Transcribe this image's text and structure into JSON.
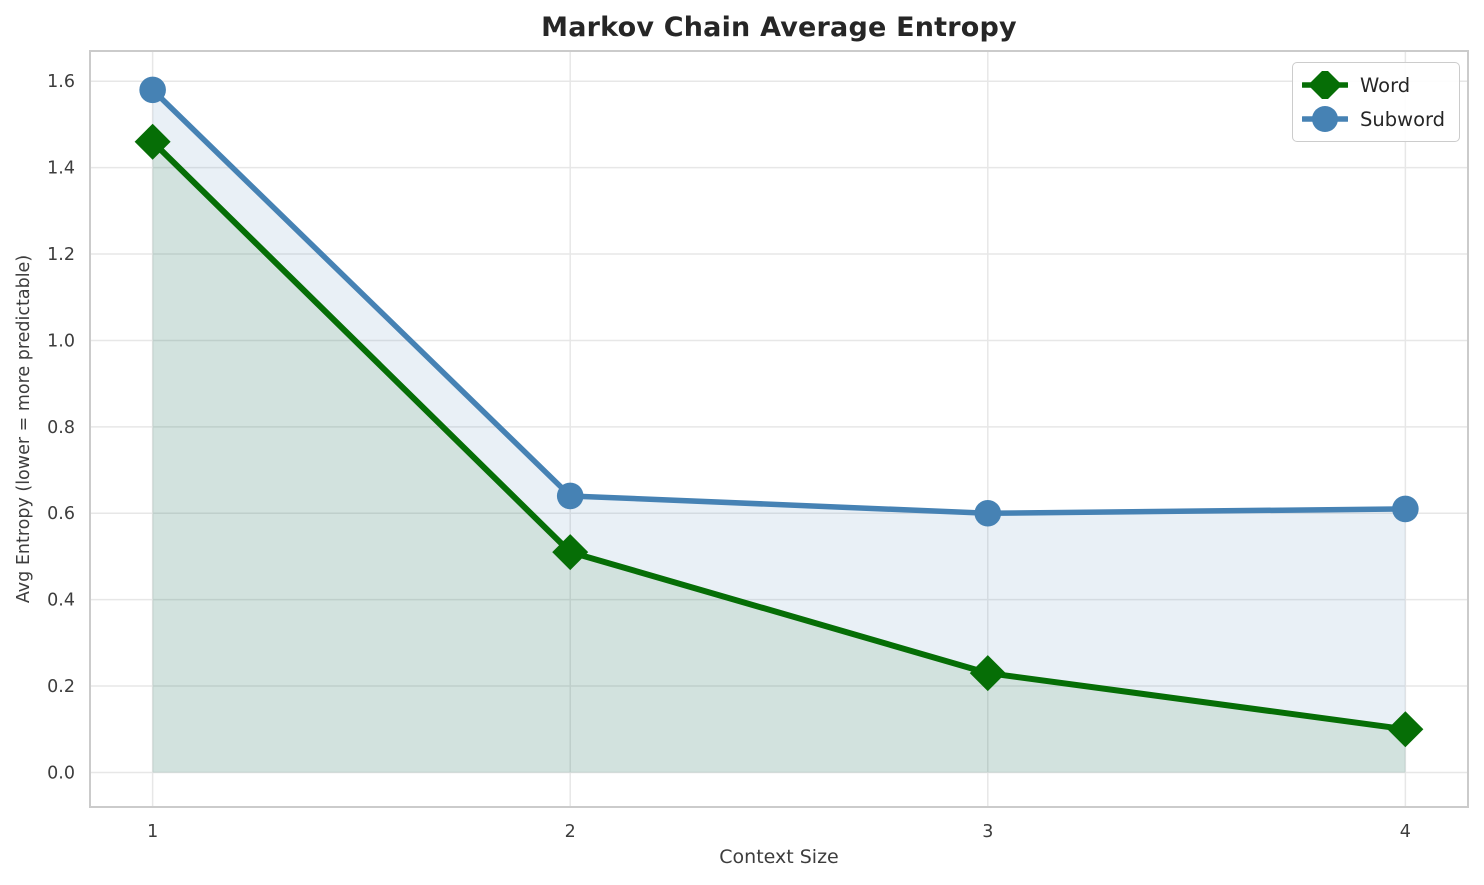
{
  "chart_data": {
    "type": "line",
    "title": "Markov Chain Average Entropy",
    "xlabel": "Context Size",
    "ylabel": "Avg Entropy (lower = more predictable)",
    "x": [
      1,
      2,
      3,
      4
    ],
    "series": [
      {
        "name": "Word",
        "values": [
          1.46,
          0.51,
          0.23,
          0.1
        ],
        "color": "#066e06",
        "marker": "diamond",
        "line_width": 6,
        "fill_to_zero": true,
        "fill_opacity": 0.1
      },
      {
        "name": "Subword",
        "values": [
          1.58,
          0.64,
          0.6,
          0.61
        ],
        "color": "#4682b4",
        "marker": "circle",
        "line_width": 5.5,
        "fill_to_zero": true,
        "fill_opacity": 0.12
      }
    ],
    "xticks": [
      1,
      2,
      3,
      4
    ],
    "xtick_labels": [
      "1",
      "2",
      "3",
      "4"
    ],
    "yticks": [
      0.0,
      0.2,
      0.4,
      0.6,
      0.8,
      1.0,
      1.2,
      1.4,
      1.6
    ],
    "ytick_labels": [
      "0.0",
      "0.2",
      "0.4",
      "0.6",
      "0.8",
      "1.0",
      "1.2",
      "1.4",
      "1.6"
    ],
    "xlim": [
      0.85,
      4.15
    ],
    "ylim": [
      -0.08,
      1.67
    ],
    "grid": true,
    "legend_position": "upper right"
  },
  "style": {
    "background": "#ffffff",
    "grid_color": "#e7e7e7",
    "spine_color": "#cbcbcb",
    "title_color": "#262626",
    "tick_color": "#3d3d3d",
    "axis_label_color": "#3d3d3d",
    "legend_text_color": "#262626",
    "legend_border_color": "#cccccc"
  }
}
